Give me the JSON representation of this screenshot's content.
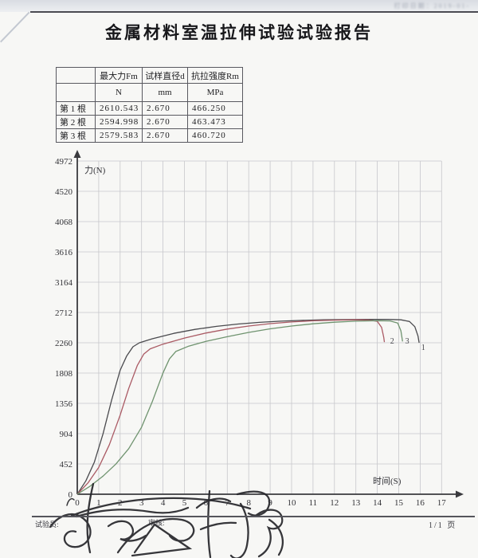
{
  "page": {
    "print_date_faint": "打印日期：2019-01-",
    "title": "金属材料室温拉伸试验试验报告"
  },
  "table": {
    "columns": [
      "",
      "最大力Fm",
      "试样直径d",
      "抗拉强度Rm"
    ],
    "units": [
      "",
      "N",
      "mm",
      "MPa"
    ],
    "rows": [
      {
        "label": "第 1 根",
        "values": [
          "2610.543",
          "2.670",
          "466.250"
        ]
      },
      {
        "label": "第 2 根",
        "values": [
          "2594.998",
          "2.670",
          "463.473"
        ]
      },
      {
        "label": "第 3 根",
        "values": [
          "2579.583",
          "2.670",
          "460.720"
        ]
      }
    ]
  },
  "chart_data": {
    "type": "line",
    "title": "",
    "xlabel": "时间(S)",
    "ylabel": "力(N)",
    "xlim": [
      0,
      17
    ],
    "ylim": [
      0,
      4972
    ],
    "x_ticks": [
      0,
      1,
      2,
      3,
      4,
      5,
      6,
      7,
      8,
      9,
      10,
      11,
      12,
      13,
      14,
      15,
      16,
      17
    ],
    "y_ticks": [
      0,
      452,
      904,
      1356,
      1808,
      2260,
      2712,
      3164,
      3616,
      4068,
      4520,
      4972
    ],
    "grid": true,
    "legend_position": "curve-end-labels",
    "series": [
      {
        "name": "1",
        "color": "#4a4a4e",
        "label_pos": [
          16.05,
          2150
        ],
        "points": [
          [
            0,
            0
          ],
          [
            0.4,
            200
          ],
          [
            0.8,
            480
          ],
          [
            1.2,
            900
          ],
          [
            1.6,
            1400
          ],
          [
            2.0,
            1850
          ],
          [
            2.3,
            2060
          ],
          [
            2.6,
            2200
          ],
          [
            2.9,
            2260
          ],
          [
            3.5,
            2320
          ],
          [
            4.5,
            2400
          ],
          [
            5.5,
            2460
          ],
          [
            6.5,
            2505
          ],
          [
            7.5,
            2540
          ],
          [
            8.5,
            2565
          ],
          [
            9.5,
            2582
          ],
          [
            10.5,
            2594
          ],
          [
            11.5,
            2602
          ],
          [
            12.5,
            2606
          ],
          [
            13.5,
            2608
          ],
          [
            14.5,
            2608
          ],
          [
            15.1,
            2602
          ],
          [
            15.5,
            2578
          ],
          [
            15.75,
            2500
          ],
          [
            15.9,
            2360
          ],
          [
            15.95,
            2260
          ]
        ]
      },
      {
        "name": "2",
        "color": "#aa5a64",
        "label_pos": [
          14.6,
          2250
        ],
        "points": [
          [
            0,
            0
          ],
          [
            0.5,
            170
          ],
          [
            1.0,
            400
          ],
          [
            1.5,
            740
          ],
          [
            2.0,
            1180
          ],
          [
            2.4,
            1580
          ],
          [
            2.8,
            1920
          ],
          [
            3.1,
            2090
          ],
          [
            3.4,
            2170
          ],
          [
            4.0,
            2240
          ],
          [
            5.0,
            2330
          ],
          [
            6.0,
            2405
          ],
          [
            7.0,
            2465
          ],
          [
            8.0,
            2510
          ],
          [
            9.0,
            2545
          ],
          [
            10.0,
            2570
          ],
          [
            11.0,
            2588
          ],
          [
            12.0,
            2598
          ],
          [
            13.0,
            2602
          ],
          [
            13.6,
            2600
          ],
          [
            14.0,
            2580
          ],
          [
            14.2,
            2490
          ],
          [
            14.3,
            2340
          ],
          [
            14.33,
            2270
          ]
        ]
      },
      {
        "name": "3",
        "color": "#6f936f",
        "label_pos": [
          15.3,
          2250
        ],
        "points": [
          [
            0,
            0
          ],
          [
            0.6,
            120
          ],
          [
            1.2,
            270
          ],
          [
            1.8,
            450
          ],
          [
            2.4,
            680
          ],
          [
            3.0,
            1000
          ],
          [
            3.5,
            1380
          ],
          [
            4.0,
            1810
          ],
          [
            4.3,
            2020
          ],
          [
            4.6,
            2130
          ],
          [
            5.2,
            2210
          ],
          [
            6.0,
            2280
          ],
          [
            7.0,
            2350
          ],
          [
            8.0,
            2415
          ],
          [
            9.0,
            2468
          ],
          [
            10.0,
            2510
          ],
          [
            11.0,
            2543
          ],
          [
            12.0,
            2567
          ],
          [
            13.0,
            2582
          ],
          [
            14.0,
            2590
          ],
          [
            14.6,
            2586
          ],
          [
            14.95,
            2555
          ],
          [
            15.1,
            2440
          ],
          [
            15.18,
            2280
          ]
        ]
      }
    ]
  },
  "footer": {
    "operator_label": "试验员:",
    "reviewer_label": "审核:",
    "page_label": "1/1 页"
  }
}
